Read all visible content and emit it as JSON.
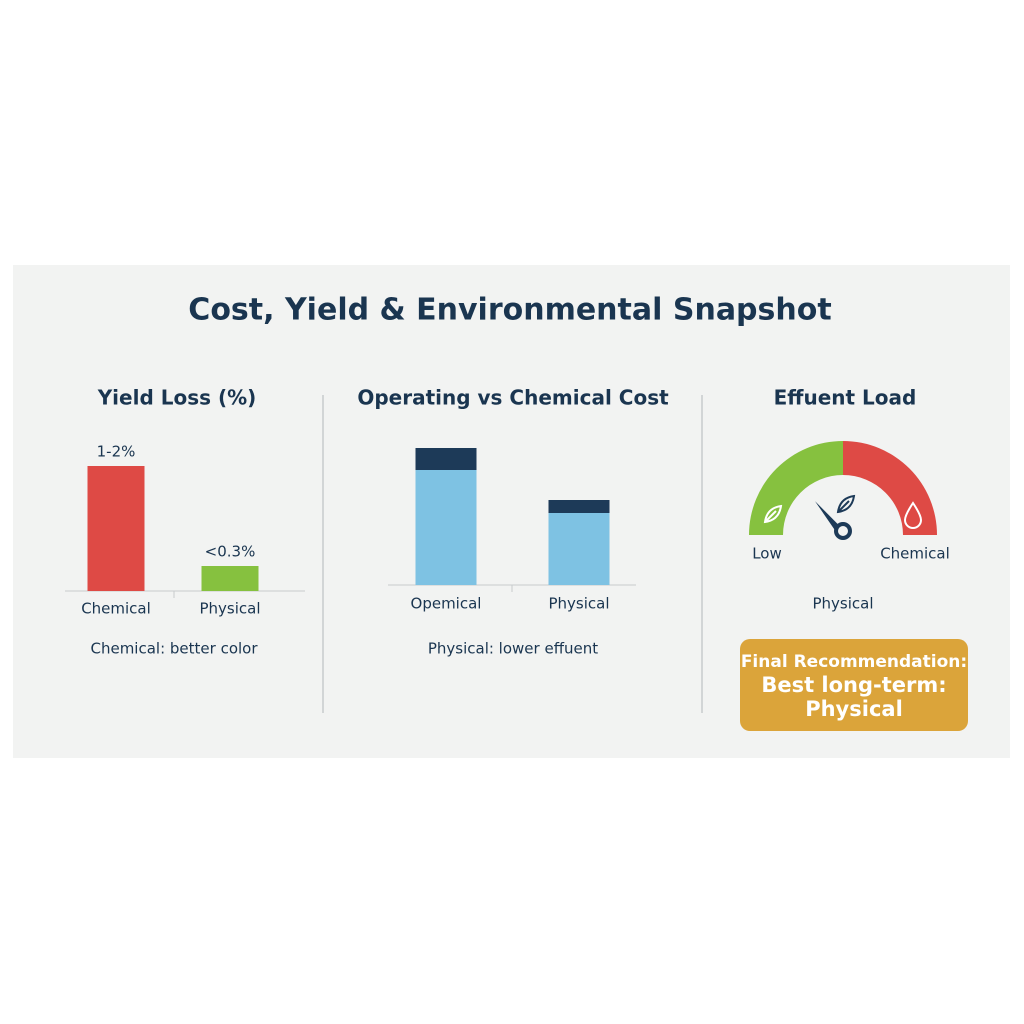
{
  "title": "Cost, Yield & Environmental Snapshot",
  "recommendation": {
    "heading": "Final Recommendation:",
    "lines": [
      "Best long-term:",
      "Physical"
    ]
  },
  "chart_data": [
    {
      "type": "bar",
      "title": "Yield Loss (%)",
      "categories": [
        "Chemical",
        "Physical"
      ],
      "values": [
        1.5,
        0.3
      ],
      "value_labels": [
        "1-2%",
        "<0.3%"
      ],
      "colors": [
        "#de4a45",
        "#86c13f"
      ],
      "note": "Chemical: better color"
    },
    {
      "type": "stacked-bar",
      "title": "Operating vs Chemical Cost",
      "categories": [
        "Opemical",
        "Physical"
      ],
      "series": [
        {
          "color": "#7ec2e3",
          "values": [
            115,
            72
          ]
        },
        {
          "color": "#1d3a58",
          "values": [
            22,
            13
          ]
        }
      ],
      "note": "Physical: lower effuent"
    },
    {
      "type": "gauge",
      "title": "Effuent Load",
      "value": 28,
      "ylim": [
        0,
        100
      ],
      "min_label": "Low",
      "max_label": "Chemical",
      "caption": "Physical",
      "colors": [
        "#86c13f",
        "#de4a45"
      ]
    }
  ]
}
